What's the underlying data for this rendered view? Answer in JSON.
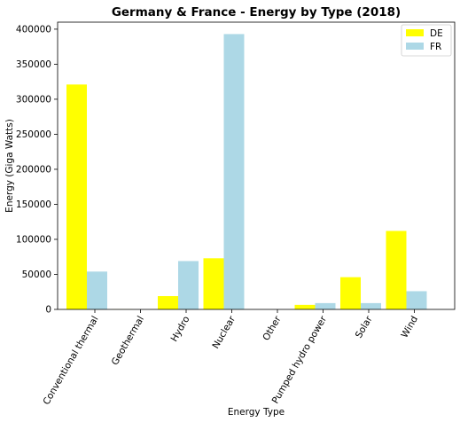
{
  "chart_data": {
    "type": "bar",
    "title": "Germany & France - Energy by Type (2018)",
    "xlabel": "Energy Type",
    "ylabel": "Energy (Giga Watts)",
    "categories": [
      "Conventional thermal",
      "Geothermal",
      "Hydro",
      "Nuclear",
      "Other",
      "Pumped hydro power",
      "Solar",
      "Wind"
    ],
    "series": [
      {
        "name": "DE",
        "color": "#ffff00",
        "values": [
          321000,
          200,
          19000,
          73000,
          0,
          6500,
          46000,
          112000
        ]
      },
      {
        "name": "FR",
        "color": "#add8e6",
        "values": [
          54000,
          100,
          69000,
          393000,
          0,
          9000,
          9000,
          26000
        ]
      }
    ],
    "ylim": [
      0,
      410000
    ],
    "yticks": [
      0,
      50000,
      100000,
      150000,
      200000,
      250000,
      300000,
      350000,
      400000
    ],
    "grid": false,
    "legend_position": "top-right"
  }
}
